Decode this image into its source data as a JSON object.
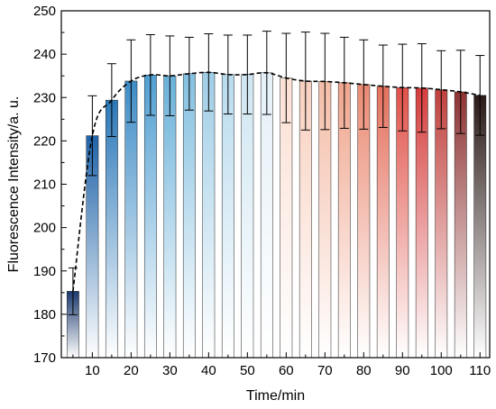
{
  "chart_data": {
    "type": "bar",
    "x": [
      5,
      10,
      15,
      20,
      25,
      30,
      35,
      40,
      45,
      50,
      55,
      60,
      65,
      70,
      75,
      80,
      85,
      90,
      95,
      100,
      105,
      110
    ],
    "values": [
      185.3,
      221.2,
      229.4,
      233.8,
      235.2,
      235.0,
      235.5,
      235.8,
      235.3,
      235.3,
      235.7,
      234.5,
      233.8,
      233.7,
      233.4,
      233.0,
      232.6,
      232.3,
      232.2,
      231.8,
      231.3,
      230.5
    ],
    "errors": [
      5.4,
      9.2,
      8.4,
      9.5,
      9.3,
      9.2,
      8.4,
      8.9,
      9.1,
      9.1,
      9.6,
      10.3,
      11.3,
      11.1,
      10.5,
      10.3,
      9.5,
      10.0,
      10.2,
      9.0,
      9.6,
      9.2
    ],
    "trend_line": "dashed",
    "xlabel": "Time/min",
    "ylabel": "Fluorescence Intensity/a. u.",
    "ylim": [
      170,
      250
    ],
    "xlim": [
      2,
      112.5
    ],
    "yticks": [
      170,
      180,
      190,
      200,
      210,
      220,
      230,
      240,
      250
    ],
    "xticks": [
      10,
      20,
      30,
      40,
      50,
      60,
      70,
      80,
      90,
      100,
      110
    ],
    "colors": [
      "#1c3a6e",
      "#1f63a8",
      "#2b78b8",
      "#3d8cc6",
      "#509fd2",
      "#69b1da",
      "#84c0e1",
      "#9fcde6",
      "#b8dbee",
      "#cfe6f2",
      "#e4f0f7",
      "#fbe0d4",
      "#f8d0bf",
      "#f4bda8",
      "#f0a58d",
      "#ea8a73",
      "#e4705d",
      "#e15148",
      "#d63c3c",
      "#c0403d",
      "#8e3232",
      "#2a1a18"
    ],
    "grid": false,
    "legend": "none"
  }
}
